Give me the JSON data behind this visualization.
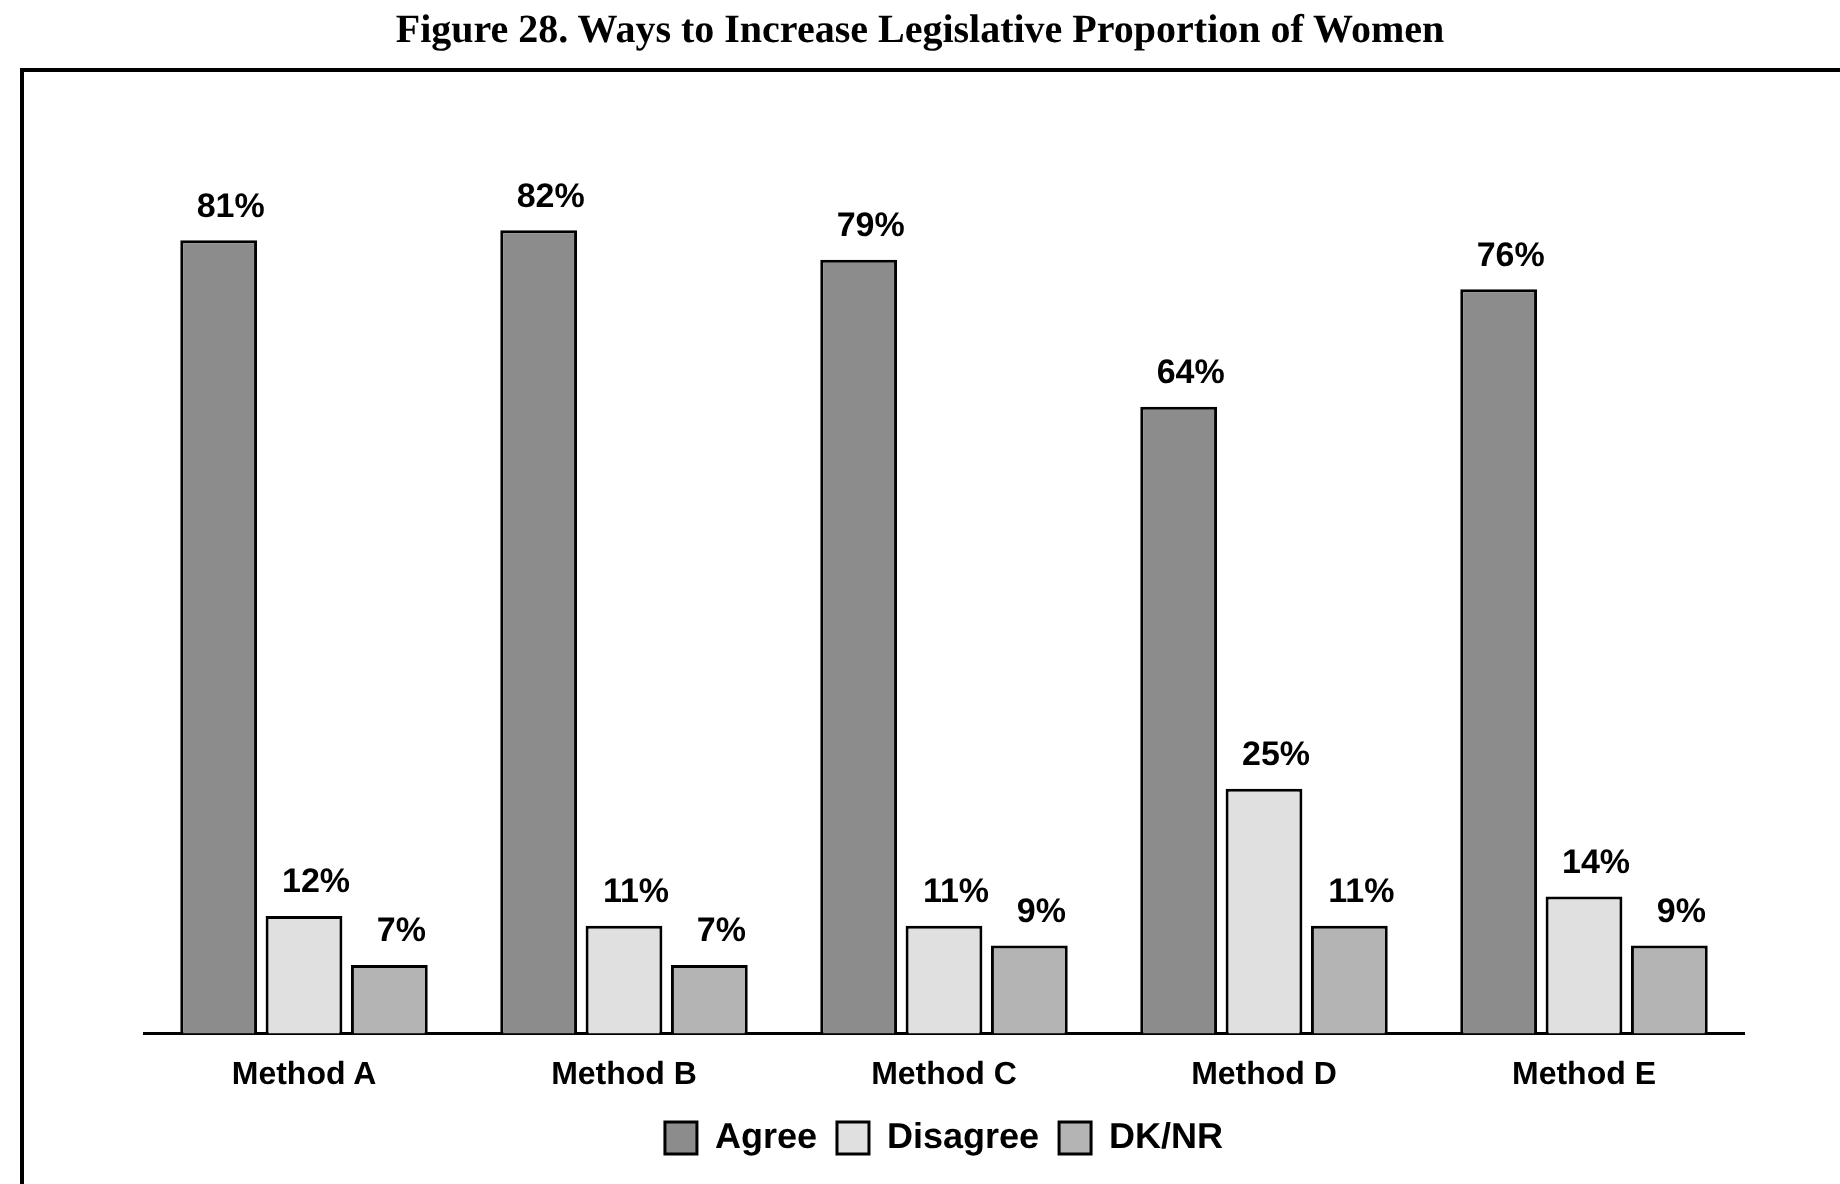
{
  "chart_data": {
    "type": "bar",
    "title": "Figure 28. Ways to Increase Legislative Proportion of Women",
    "categories": [
      "Method A",
      "Method B",
      "Method C",
      "Method D",
      "Method E"
    ],
    "series": [
      {
        "name": "Agree",
        "color": "#8c8c8c",
        "values": [
          81,
          82,
          79,
          64,
          76
        ],
        "value_labels": [
          "81%",
          "82%",
          "79%",
          "64%",
          "76%"
        ]
      },
      {
        "name": "Disagree",
        "color": "#e0e0e0",
        "values": [
          12,
          11,
          11,
          25,
          14
        ],
        "value_labels": [
          "12%",
          "11%",
          "11%",
          "25%",
          "14%"
        ]
      },
      {
        "name": "DK/NR",
        "color": "#b4b4b4",
        "values": [
          7,
          7,
          9,
          11,
          9
        ],
        "value_labels": [
          "7%",
          "7%",
          "9%",
          "11%",
          "9%"
        ]
      }
    ],
    "legend": "bottom",
    "grid": false
  }
}
